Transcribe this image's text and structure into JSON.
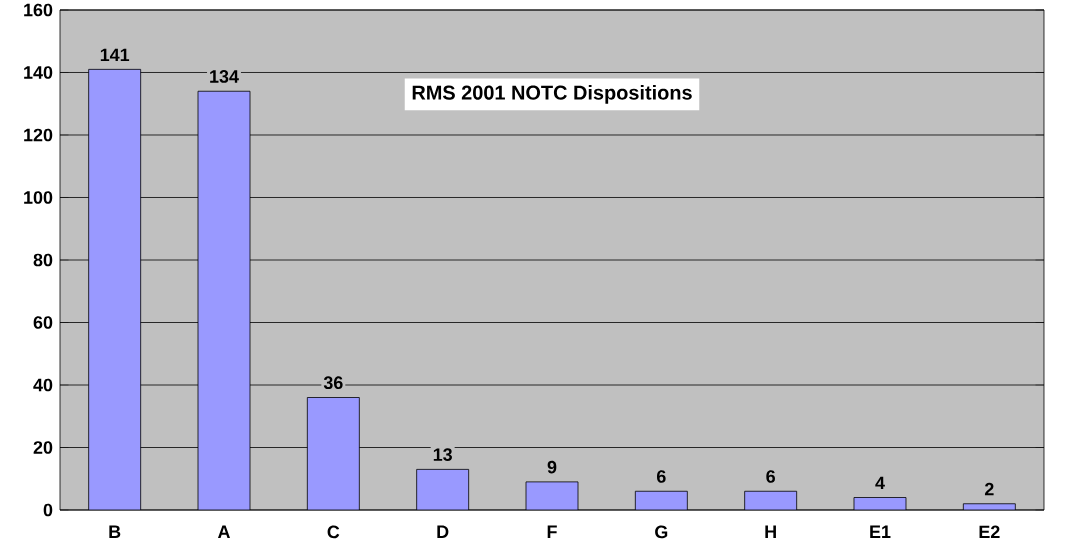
{
  "chart_data": {
    "type": "bar",
    "title": "RMS 2001 NOTC Dispositions",
    "categories": [
      "B",
      "A",
      "C",
      "D",
      "F",
      "G",
      "H",
      "E1",
      "E2"
    ],
    "values": [
      141,
      134,
      36,
      13,
      9,
      6,
      6,
      4,
      2
    ],
    "color": "#9999ff",
    "ylim": [
      0,
      160
    ],
    "yticks": [
      0,
      20,
      40,
      60,
      80,
      100,
      120,
      140,
      160
    ],
    "grid": "y",
    "data_labels": true
  }
}
